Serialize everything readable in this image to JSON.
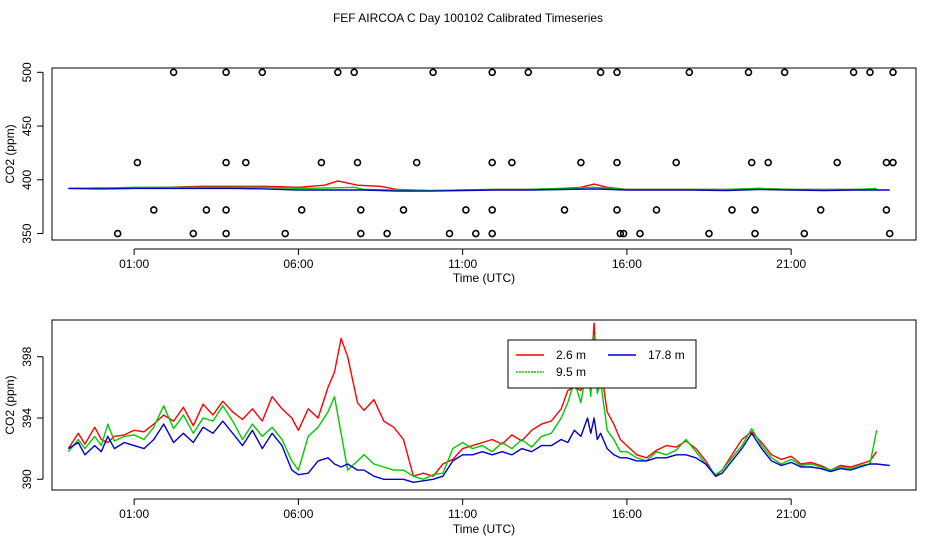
{
  "title": "FEF AIRCOA C  Day 100102  Calibrated Timeseries",
  "chart_data": [
    {
      "type": "scatter",
      "xlabel": "Time (UTC)",
      "ylabel": "CO2 (ppm)",
      "xlim": [
        -1.5,
        24.8
      ],
      "ylim": [
        344,
        504
      ],
      "xticks": [
        1,
        6,
        11,
        16,
        21
      ],
      "xtick_labels": [
        "01:00",
        "06:00",
        "11:00",
        "16:00",
        "21:00"
      ],
      "yticks": [
        350,
        400,
        450,
        500
      ],
      "ytick_labels": [
        "350",
        "400",
        "450",
        "500"
      ],
      "grid": false,
      "markers": {
        "x": [
          1.1,
          0.5,
          1.6,
          2.2,
          3.2,
          2.8,
          3.8,
          3.8,
          3.8,
          3.8,
          4.4,
          4.9,
          5.6,
          6.1,
          6.7,
          7.2,
          7.7,
          7.8,
          7.9,
          7.9,
          8.7,
          9.2,
          9.6,
          10.1,
          10.6,
          11.1,
          11.4,
          11.9,
          11.9,
          11.9,
          11.9,
          12.5,
          13.0,
          14.1,
          14.6,
          15.2,
          15.7,
          15.7,
          15.7,
          15.8,
          15.9,
          16.4,
          16.9,
          17.5,
          17.9,
          18.5,
          19.2,
          19.7,
          19.8,
          19.9,
          19.9,
          20.3,
          20.8,
          21.4,
          21.9,
          22.4,
          22.9,
          23.4,
          23.9,
          23.9,
          24.0,
          24.1,
          24.1
        ],
        "y": [
          416,
          350,
          372,
          500,
          372,
          350,
          500,
          416,
          372,
          350,
          416,
          500,
          350,
          372,
          416,
          500,
          500,
          416,
          372,
          350,
          350,
          372,
          416,
          500,
          350,
          372,
          350,
          500,
          416,
          372,
          350,
          416,
          500,
          372,
          416,
          500,
          500,
          416,
          372,
          350,
          350,
          350,
          372,
          416,
          500,
          350,
          372,
          500,
          416,
          372,
          350,
          416,
          500,
          350,
          372,
          416,
          500,
          500,
          416,
          372,
          350,
          500,
          416
        ]
      },
      "series": [
        {
          "color": "#ff0000",
          "x": [
            -1.0,
            0.0,
            1.0,
            2.0,
            3.0,
            4.0,
            5.0,
            6.0,
            6.8,
            7.2,
            7.8,
            8.5,
            9.0,
            10.0,
            11.0,
            12.0,
            13.0,
            14.0,
            14.6,
            15.0,
            15.4,
            16.0,
            17.0,
            18.0,
            19.0,
            20.0,
            21.0,
            22.0,
            23.0,
            23.6
          ],
          "y": [
            392,
            392.5,
            392.5,
            393,
            394,
            394,
            394,
            393,
            395,
            399,
            395,
            394,
            391,
            390,
            390.5,
            391,
            391,
            392,
            393,
            396,
            393,
            391,
            391,
            391,
            391,
            392,
            391,
            391,
            391,
            391
          ]
        },
        {
          "color": "#00cc00",
          "x": [
            -1.0,
            0.0,
            1.0,
            2.0,
            3.0,
            4.0,
            5.0,
            6.0,
            7.0,
            7.7,
            8.0,
            9.0,
            10.0,
            11.0,
            12.0,
            13.0,
            14.0,
            15.0,
            16.0,
            17.0,
            18.0,
            19.0,
            20.0,
            21.0,
            22.0,
            23.0,
            23.6
          ],
          "y": [
            392,
            392,
            393,
            393,
            393,
            393,
            393,
            392,
            392.5,
            393,
            391,
            390.5,
            390,
            390.5,
            391,
            391,
            392,
            393,
            391,
            391,
            391,
            391,
            392,
            391,
            391,
            391,
            392
          ]
        },
        {
          "color": "#0000cc",
          "x": [
            -1.0,
            0.0,
            1.0,
            2.0,
            3.0,
            4.0,
            5.0,
            6.0,
            7.0,
            8.0,
            9.0,
            10.0,
            11.0,
            12.0,
            13.0,
            14.0,
            15.0,
            16.0,
            17.0,
            18.0,
            19.0,
            20.0,
            21.0,
            22.0,
            23.0,
            24.0
          ],
          "y": [
            392,
            391.5,
            392,
            392,
            392,
            392,
            391.5,
            390.5,
            390.5,
            390.5,
            389.5,
            389.5,
            390,
            390.5,
            390.5,
            391,
            391.5,
            390.5,
            390.5,
            390.5,
            390,
            391,
            390.5,
            390,
            390.5,
            390.5
          ]
        }
      ]
    },
    {
      "type": "line",
      "xlabel": "Time (UTC)",
      "ylabel": "CO2 (ppm)",
      "xlim": [
        -1.5,
        24.8
      ],
      "ylim": [
        389.3,
        400.4
      ],
      "xticks": [
        1,
        6,
        11,
        16,
        21
      ],
      "xtick_labels": [
        "01:00",
        "06:00",
        "11:00",
        "16:00",
        "21:00"
      ],
      "yticks": [
        390,
        394,
        398
      ],
      "ytick_labels": [
        "390",
        "394",
        "398"
      ],
      "grid": false,
      "legend": "top-center",
      "series": [
        {
          "name": "2.6 m",
          "color": "#ff0000",
          "x": [
            -1.0,
            -0.7,
            -0.5,
            -0.2,
            0.0,
            0.2,
            0.4,
            0.7,
            1.0,
            1.3,
            1.6,
            1.9,
            2.2,
            2.5,
            2.8,
            3.1,
            3.4,
            3.7,
            4.0,
            4.3,
            4.6,
            4.9,
            5.2,
            5.5,
            5.8,
            6.0,
            6.3,
            6.6,
            6.9,
            7.1,
            7.3,
            7.5,
            7.8,
            8.0,
            8.3,
            8.6,
            8.9,
            9.2,
            9.5,
            9.8,
            10.1,
            10.4,
            10.7,
            11.0,
            11.3,
            11.6,
            11.9,
            12.2,
            12.5,
            12.8,
            13.1,
            13.4,
            13.7,
            14.0,
            14.2,
            14.4,
            14.6,
            14.8,
            14.9,
            15.0,
            15.1,
            15.2,
            15.4,
            15.6,
            15.8,
            16.0,
            16.3,
            16.6,
            16.9,
            17.2,
            17.5,
            17.8,
            18.1,
            18.4,
            18.7,
            18.9,
            19.2,
            19.5,
            19.8,
            20.1,
            20.4,
            20.7,
            21.0,
            21.3,
            21.6,
            21.9,
            22.2,
            22.5,
            22.8,
            23.1,
            23.4,
            23.6
          ],
          "y": [
            392.0,
            393.0,
            392.3,
            393.4,
            392.6,
            392.4,
            392.8,
            392.9,
            393.2,
            393.1,
            393.6,
            394.2,
            393.8,
            394.7,
            393.5,
            394.9,
            394.2,
            395.1,
            394.4,
            393.9,
            394.6,
            393.8,
            395.4,
            394.6,
            394.0,
            393.2,
            394.6,
            394.0,
            396.0,
            397.0,
            399.2,
            398.0,
            395.0,
            394.5,
            395.2,
            393.8,
            393.4,
            392.6,
            390.2,
            390.4,
            390.2,
            391.0,
            391.3,
            392.0,
            392.2,
            392.4,
            392.6,
            392.3,
            392.9,
            392.5,
            393.2,
            393.6,
            393.8,
            394.6,
            395.8,
            396.0,
            395.8,
            398.2,
            396.8,
            400.2,
            396.2,
            397.4,
            394.4,
            393.6,
            392.6,
            392.2,
            391.6,
            391.4,
            391.9,
            392.2,
            392.1,
            392.5,
            392.0,
            391.2,
            390.2,
            390.6,
            391.6,
            392.6,
            393.1,
            392.4,
            391.6,
            391.3,
            391.5,
            391.0,
            391.1,
            390.9,
            390.6,
            390.9,
            390.8,
            391.0,
            391.2,
            391.8
          ]
        },
        {
          "name": "9.5 m",
          "color": "#00cc00",
          "x": [
            -1.0,
            -0.7,
            -0.5,
            -0.2,
            0.0,
            0.2,
            0.4,
            0.7,
            1.0,
            1.3,
            1.6,
            1.9,
            2.2,
            2.5,
            2.8,
            3.1,
            3.4,
            3.7,
            4.0,
            4.3,
            4.6,
            4.9,
            5.2,
            5.5,
            5.8,
            6.0,
            6.3,
            6.6,
            6.9,
            7.1,
            7.3,
            7.5,
            7.8,
            8.0,
            8.3,
            8.6,
            8.9,
            9.2,
            9.5,
            9.8,
            10.1,
            10.4,
            10.7,
            11.0,
            11.3,
            11.6,
            11.9,
            12.2,
            12.5,
            12.8,
            13.1,
            13.4,
            13.7,
            14.0,
            14.2,
            14.4,
            14.6,
            14.8,
            14.9,
            15.0,
            15.1,
            15.2,
            15.4,
            15.6,
            15.8,
            16.0,
            16.3,
            16.6,
            16.9,
            17.2,
            17.5,
            17.8,
            18.1,
            18.4,
            18.7,
            18.9,
            19.2,
            19.5,
            19.8,
            20.1,
            20.4,
            20.7,
            21.0,
            21.3,
            21.6,
            21.9,
            22.2,
            22.5,
            22.8,
            23.1,
            23.4,
            23.6
          ],
          "y": [
            391.8,
            392.6,
            392.0,
            392.8,
            392.2,
            393.6,
            392.5,
            392.8,
            392.9,
            392.6,
            393.4,
            394.8,
            393.3,
            394.2,
            393.0,
            394.0,
            393.8,
            394.8,
            393.8,
            392.6,
            393.6,
            392.8,
            393.4,
            392.6,
            391.2,
            390.6,
            392.8,
            393.4,
            394.4,
            395.4,
            393.0,
            390.6,
            391.2,
            391.6,
            391.0,
            390.8,
            390.6,
            390.6,
            390.2,
            390.0,
            390.3,
            390.4,
            392.0,
            392.4,
            392.0,
            392.2,
            391.8,
            392.4,
            392.0,
            392.6,
            392.1,
            392.8,
            393.0,
            394.0,
            395.0,
            396.4,
            395.0,
            397.6,
            395.4,
            399.4,
            395.6,
            396.4,
            393.2,
            392.6,
            391.8,
            391.8,
            391.4,
            391.2,
            391.8,
            391.6,
            391.9,
            392.6,
            391.8,
            391.0,
            390.3,
            390.6,
            391.4,
            392.2,
            393.3,
            392.2,
            391.4,
            391.0,
            391.3,
            390.9,
            391.0,
            390.8,
            390.6,
            390.8,
            390.7,
            390.9,
            391.0,
            393.2
          ]
        },
        {
          "name": "17.8 m",
          "color": "#0000cc",
          "x": [
            -1.0,
            -0.7,
            -0.5,
            -0.2,
            0.0,
            0.2,
            0.4,
            0.7,
            1.0,
            1.3,
            1.6,
            1.9,
            2.2,
            2.5,
            2.8,
            3.1,
            3.4,
            3.7,
            4.0,
            4.3,
            4.6,
            4.9,
            5.2,
            5.5,
            5.8,
            6.0,
            6.3,
            6.6,
            6.9,
            7.1,
            7.3,
            7.5,
            7.8,
            8.0,
            8.3,
            8.6,
            8.9,
            9.2,
            9.5,
            9.8,
            10.1,
            10.4,
            10.7,
            11.0,
            11.3,
            11.6,
            11.9,
            12.2,
            12.5,
            12.8,
            13.1,
            13.4,
            13.7,
            14.0,
            14.2,
            14.4,
            14.6,
            14.8,
            14.9,
            15.0,
            15.1,
            15.2,
            15.4,
            15.6,
            15.8,
            16.0,
            16.3,
            16.6,
            16.9,
            17.2,
            17.5,
            17.8,
            18.1,
            18.4,
            18.7,
            18.9,
            19.2,
            19.5,
            19.8,
            20.1,
            20.4,
            20.7,
            21.0,
            21.3,
            21.6,
            21.9,
            22.2,
            22.5,
            22.8,
            23.1,
            23.4,
            23.6,
            24.0
          ],
          "y": [
            392.0,
            392.4,
            391.6,
            392.2,
            391.8,
            392.8,
            392.0,
            392.4,
            392.2,
            392.0,
            392.6,
            393.6,
            392.4,
            393.0,
            392.4,
            393.4,
            393.0,
            393.8,
            393.0,
            392.2,
            393.2,
            392.0,
            393.0,
            392.2,
            390.6,
            390.3,
            390.4,
            391.2,
            391.4,
            391.0,
            390.8,
            391.0,
            390.6,
            390.6,
            390.2,
            390.0,
            390.0,
            390.0,
            389.8,
            389.9,
            390.0,
            390.2,
            391.2,
            391.6,
            391.6,
            391.8,
            391.6,
            391.8,
            391.6,
            392.0,
            391.8,
            392.2,
            392.2,
            392.6,
            392.4,
            393.2,
            392.8,
            394.0,
            393.0,
            394.0,
            392.6,
            393.0,
            392.0,
            391.6,
            391.4,
            391.4,
            391.2,
            391.2,
            391.4,
            391.4,
            391.6,
            391.6,
            391.4,
            391.0,
            390.2,
            390.4,
            391.2,
            392.0,
            393.0,
            392.0,
            391.2,
            390.9,
            391.1,
            390.8,
            390.8,
            390.7,
            390.5,
            390.7,
            390.6,
            390.8,
            391.0,
            391.0,
            390.9
          ]
        }
      ]
    }
  ]
}
